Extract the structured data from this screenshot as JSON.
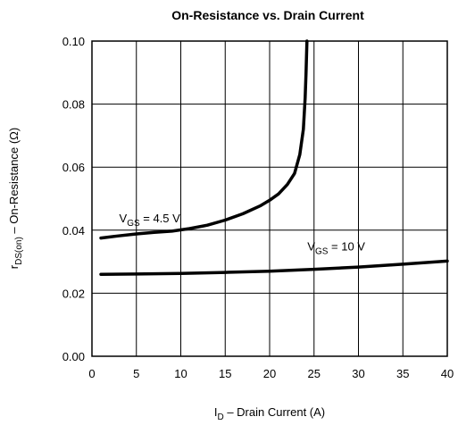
{
  "chart_data": {
    "type": "line",
    "title": "On-Resistance vs. Drain Current",
    "xlabel": {
      "main": "I",
      "sub": "D",
      "rest": "  –  Drain Current (A)"
    },
    "ylabel": {
      "main": "r",
      "sub": "DS(on)",
      "rest": "  –  On-Resistance (Ω)"
    },
    "xlim": [
      0,
      40
    ],
    "ylim": [
      0,
      0.1
    ],
    "xticks": [
      "0",
      "5",
      "10",
      "15",
      "20",
      "25",
      "30",
      "35",
      "40"
    ],
    "yticks": [
      "0.00",
      "0.02",
      "0.04",
      "0.06",
      "0.08",
      "0.10"
    ],
    "grid": true,
    "series": [
      {
        "name": {
          "main": "V",
          "sub": "GS",
          "rest": " = 4.5 V"
        },
        "x": [
          1,
          3,
          5,
          7,
          9,
          11,
          13,
          15,
          17,
          19,
          20,
          21,
          22,
          22.8,
          23.4,
          23.8,
          24.0,
          24.1,
          24.15,
          24.2
        ],
        "y": [
          0.0375,
          0.0382,
          0.0388,
          0.0393,
          0.0397,
          0.0405,
          0.0416,
          0.0432,
          0.0452,
          0.0478,
          0.0495,
          0.0515,
          0.0545,
          0.058,
          0.064,
          0.072,
          0.082,
          0.09,
          0.095,
          0.1
        ]
      },
      {
        "name": {
          "main": "V",
          "sub": "GS",
          "rest": " = 10 V"
        },
        "x": [
          1,
          5,
          10,
          15,
          20,
          25,
          30,
          35,
          40
        ],
        "y": [
          0.026,
          0.0261,
          0.0263,
          0.0266,
          0.027,
          0.0276,
          0.0283,
          0.0292,
          0.0302
        ]
      }
    ],
    "annotations": [
      {
        "series": 0,
        "x": 6.5,
        "y": 0.0425
      },
      {
        "series": 1,
        "x": 27.5,
        "y": 0.0335
      }
    ]
  }
}
